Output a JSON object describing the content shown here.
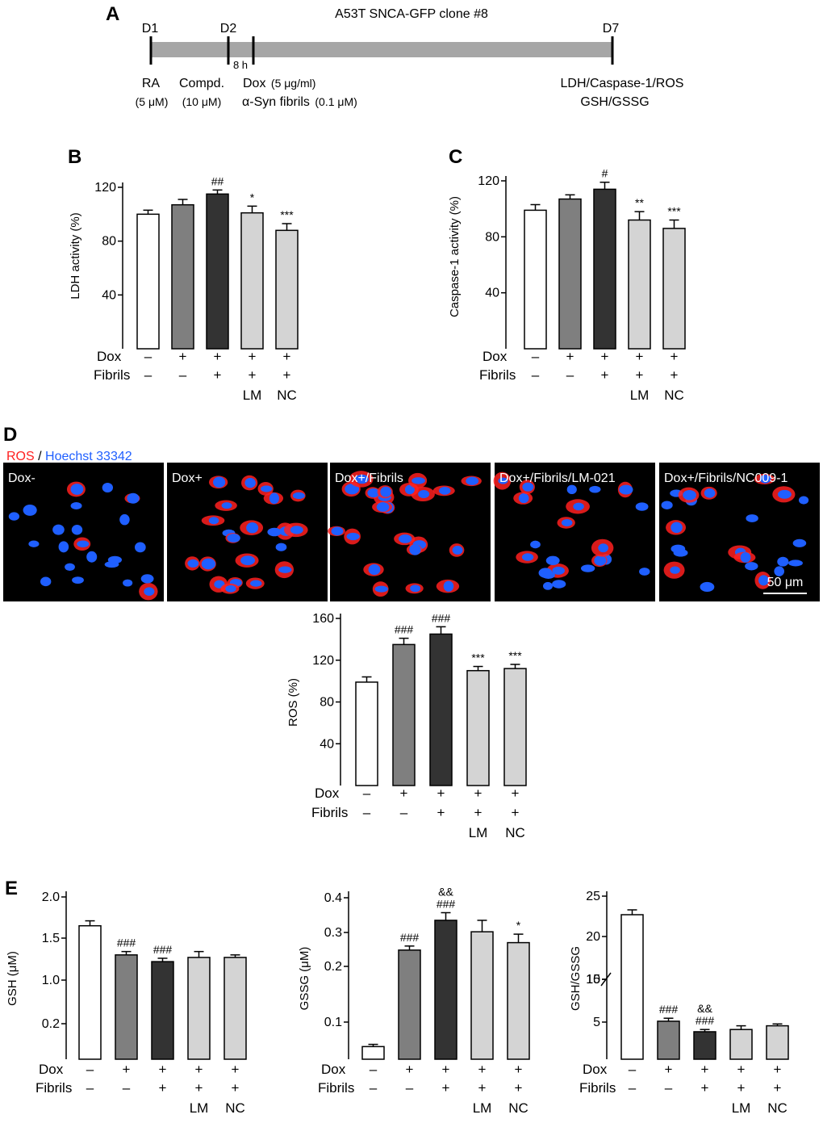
{
  "panel_a": {
    "letter": "A",
    "title": "A53T SNCA-GFP  clone #8",
    "days": [
      "D1",
      "D2",
      "D7"
    ],
    "gap": "8 h",
    "steps": [
      {
        "name": "RA",
        "conc": "(5 μM)"
      },
      {
        "name": "Compd.",
        "conc": "(10 μM)"
      },
      {
        "name": "Dox",
        "conc": "(5 μg/ml)"
      },
      {
        "name": "α-Syn fibrils",
        "conc": "(0.1 μM)"
      }
    ],
    "readout_line1": "LDH/Caspase-1/ROS",
    "readout_line2": "GSH/GSSG"
  },
  "conditions": {
    "row1_label": "Dox",
    "row2_label": "Fibrils",
    "dox": [
      "–",
      "+",
      "+",
      "+",
      "+"
    ],
    "fibrils": [
      "–",
      "–",
      "+",
      "+",
      "+"
    ],
    "compounds": [
      "",
      "",
      "",
      "LM",
      "NC"
    ]
  },
  "bar_colors": [
    "#ffffff",
    "#7f7f7f",
    "#333333",
    "#d4d4d4",
    "#d4d4d4"
  ],
  "panel_d": {
    "letter": "D",
    "legend_ros": "ROS",
    "legend_sep": " / ",
    "legend_hoechst": "Hoechst 33342",
    "ros_color": "#ff2020",
    "hoechst_color": "#1f5fff",
    "images": [
      {
        "label": "Dox-"
      },
      {
        "label": "Dox+"
      },
      {
        "label": "Dox+/Fibrils"
      },
      {
        "label": "Dox+/Fibrils/LM-021"
      },
      {
        "label": "Dox+/Fibrils/NC009-1"
      }
    ],
    "scale_bar": "50 μm"
  },
  "panel_e_letter": "E",
  "chart_data": [
    {
      "id": "B",
      "letter": "B",
      "type": "bar",
      "ylabel": "LDH activity (%)",
      "ylim": [
        0,
        120
      ],
      "yticks": [
        40,
        80,
        120
      ],
      "values": [
        100,
        107,
        115,
        101,
        88
      ],
      "errors": [
        3,
        4,
        3,
        5,
        5
      ],
      "annotations": [
        "",
        "",
        "##",
        "*",
        "***"
      ]
    },
    {
      "id": "C",
      "letter": "C",
      "type": "bar",
      "ylabel": "Caspase-1 activity (%)",
      "ylim": [
        0,
        120
      ],
      "yticks": [
        40,
        80,
        120
      ],
      "values": [
        99,
        107,
        114,
        92,
        86
      ],
      "errors": [
        4,
        3,
        5,
        6,
        6
      ],
      "annotations": [
        "",
        "",
        "#",
        "**",
        "***"
      ]
    },
    {
      "id": "D",
      "type": "bar",
      "ylabel": "ROS (%)",
      "ylim": [
        0,
        160
      ],
      "yticks": [
        40,
        80,
        120,
        160
      ],
      "values": [
        99,
        135,
        145,
        110,
        112
      ],
      "errors": [
        5,
        6,
        7,
        4,
        4
      ],
      "annotations": [
        "",
        "###",
        "###",
        "***",
        "***"
      ]
    },
    {
      "id": "E1",
      "type": "bar",
      "ylabel": "GSH (μM)",
      "yticks": [
        "0.2",
        "1.0",
        "1.5",
        "2.0"
      ],
      "values": [
        1.65,
        1.3,
        1.22,
        1.27,
        1.27
      ],
      "errors": [
        0.06,
        0.04,
        0.04,
        0.07,
        0.03
      ],
      "annotations": [
        "",
        "###",
        "###",
        "",
        ""
      ]
    },
    {
      "id": "E2",
      "type": "bar",
      "ylabel": "GSSG (μM)",
      "ylim": [
        0.05,
        0.4
      ],
      "yticks": [
        "0.1",
        "0.2",
        "0.3",
        "0.4"
      ],
      "values": [
        0.067,
        0.248,
        0.335,
        0.302,
        0.27
      ],
      "errors": [
        0.003,
        0.012,
        0.022,
        0.033,
        0.025
      ],
      "annotations": [
        "",
        "###",
        "&&\n###",
        "",
        "*"
      ]
    },
    {
      "id": "E3",
      "type": "bar",
      "ylabel": "GSH/GSSG",
      "yticks": [
        "5",
        "10",
        "15",
        "20",
        "25"
      ],
      "axis_break": true,
      "values": [
        22.7,
        5.1,
        3.7,
        4.0,
        4.5
      ],
      "errors": [
        0.6,
        0.35,
        0.3,
        0.5,
        0.25
      ],
      "annotations": [
        "",
        "###",
        "&&\n###",
        "",
        ""
      ]
    }
  ]
}
